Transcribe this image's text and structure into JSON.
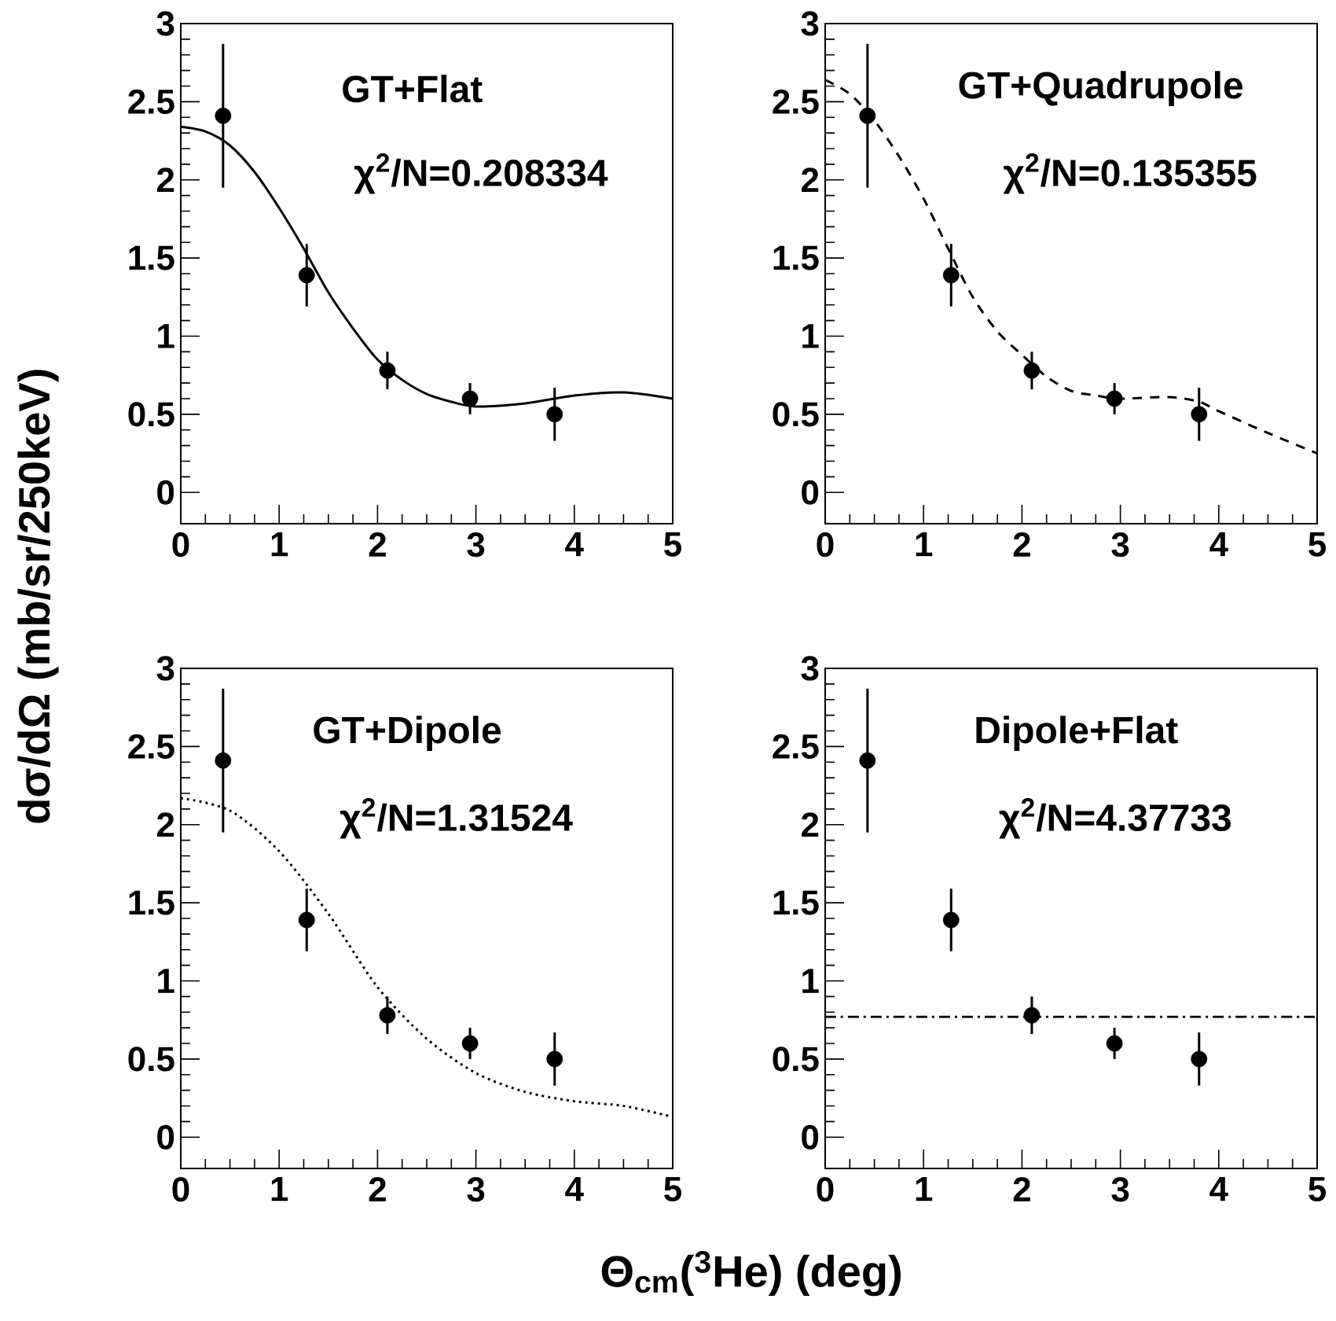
{
  "chart_data": [
    {
      "type": "scatter",
      "ylabel": "dσ/dΩ (mb/sr/250keV)",
      "annotations": [
        "GT+Flat",
        "χ$^{2}$/N=0.208334"
      ],
      "xlim": [
        0,
        5
      ],
      "ylim": [
        -0.2,
        3
      ],
      "xticks": [
        0,
        1,
        2,
        3,
        4,
        5
      ],
      "yticks": [
        0,
        0.5,
        1,
        1.5,
        2,
        2.5,
        3
      ],
      "grid": false,
      "series": [
        {
          "color": "#000000",
          "marker": "circle",
          "x": [
            0.43,
            1.28,
            2.1,
            2.94,
            3.8
          ],
          "values": [
            2.41,
            1.39,
            0.78,
            0.6,
            0.5
          ],
          "errors": [
            0.46,
            0.2,
            0.12,
            0.1,
            0.17
          ]
        },
        {
          "type": "line",
          "color": "#000000",
          "marker": "none",
          "line_style": "solid",
          "x": [
            0,
            0.25,
            0.5,
            0.75,
            1,
            1.25,
            1.5,
            1.75,
            2,
            2.25,
            2.5,
            2.75,
            3,
            3.5,
            4,
            4.5,
            5
          ],
          "values": [
            2.34,
            2.31,
            2.22,
            2.05,
            1.82,
            1.56,
            1.28,
            1.05,
            0.85,
            0.72,
            0.63,
            0.58,
            0.55,
            0.57,
            0.62,
            0.64,
            0.6
          ]
        }
      ]
    },
    {
      "type": "scatter",
      "annotations": [
        "GT+Quadrupole",
        "χ$^{2}$/N=0.135355"
      ],
      "xlim": [
        0,
        5
      ],
      "ylim": [
        -0.2,
        3
      ],
      "xticks": [
        0,
        1,
        2,
        3,
        4,
        5
      ],
      "yticks": [
        0,
        0.5,
        1,
        1.5,
        2,
        2.5,
        3
      ],
      "grid": false,
      "series": [
        {
          "color": "#000000",
          "marker": "circle",
          "x": [
            0.43,
            1.28,
            2.1,
            2.94,
            3.8
          ],
          "values": [
            2.41,
            1.39,
            0.78,
            0.6,
            0.5
          ],
          "errors": [
            0.46,
            0.2,
            0.12,
            0.1,
            0.17
          ]
        },
        {
          "type": "line",
          "color": "#000000",
          "marker": "none",
          "line_style": "dashed",
          "x": [
            0,
            0.25,
            0.5,
            0.75,
            1,
            1.25,
            1.5,
            1.75,
            2,
            2.25,
            2.5,
            2.75,
            3,
            3.5,
            3.8,
            4,
            4.5,
            5
          ],
          "values": [
            2.64,
            2.55,
            2.38,
            2.15,
            1.88,
            1.56,
            1.25,
            1.03,
            0.88,
            0.74,
            0.65,
            0.62,
            0.6,
            0.61,
            0.58,
            0.52,
            0.38,
            0.25
          ]
        }
      ]
    },
    {
      "type": "scatter",
      "xlabel": "Θ$_{cm}$($^{3}$He) (deg)",
      "annotations": [
        "GT+Dipole",
        "χ$^{2}$/N=1.31524"
      ],
      "xlim": [
        0,
        5
      ],
      "ylim": [
        -0.2,
        3
      ],
      "xticks": [
        0,
        1,
        2,
        3,
        4,
        5
      ],
      "yticks": [
        0,
        0.5,
        1,
        1.5,
        2,
        2.5,
        3
      ],
      "grid": false,
      "series": [
        {
          "color": "#000000",
          "marker": "circle",
          "x": [
            0.43,
            1.28,
            2.1,
            2.94,
            3.8
          ],
          "values": [
            2.41,
            1.39,
            0.78,
            0.6,
            0.5
          ],
          "errors": [
            0.46,
            0.2,
            0.12,
            0.1,
            0.17
          ]
        },
        {
          "type": "line",
          "color": "#000000",
          "marker": "none",
          "line_style": "dotted",
          "x": [
            0,
            0.5,
            1,
            1.5,
            2,
            2.5,
            3,
            3.5,
            4,
            4.5,
            5
          ],
          "values": [
            2.17,
            2.09,
            1.83,
            1.43,
            0.96,
            0.63,
            0.41,
            0.29,
            0.23,
            0.2,
            0.13
          ]
        }
      ]
    },
    {
      "type": "scatter",
      "annotations": [
        "Dipole+Flat",
        "χ$^{2}$/N=4.37733"
      ],
      "xlim": [
        0,
        5
      ],
      "ylim": [
        -0.2,
        3
      ],
      "xticks": [
        0,
        1,
        2,
        3,
        4,
        5
      ],
      "yticks": [
        0,
        0.5,
        1,
        1.5,
        2,
        2.5,
        3
      ],
      "grid": false,
      "series": [
        {
          "color": "#000000",
          "marker": "circle",
          "x": [
            0.43,
            1.28,
            2.1,
            2.94,
            3.8
          ],
          "values": [
            2.41,
            1.39,
            0.78,
            0.6,
            0.5
          ],
          "errors": [
            0.46,
            0.2,
            0.12,
            0.1,
            0.17
          ]
        },
        {
          "type": "line",
          "color": "#000000",
          "marker": "none",
          "line_style": "dashdot",
          "x": [
            0,
            5
          ],
          "values": [
            0.77,
            0.77
          ]
        }
      ]
    }
  ]
}
